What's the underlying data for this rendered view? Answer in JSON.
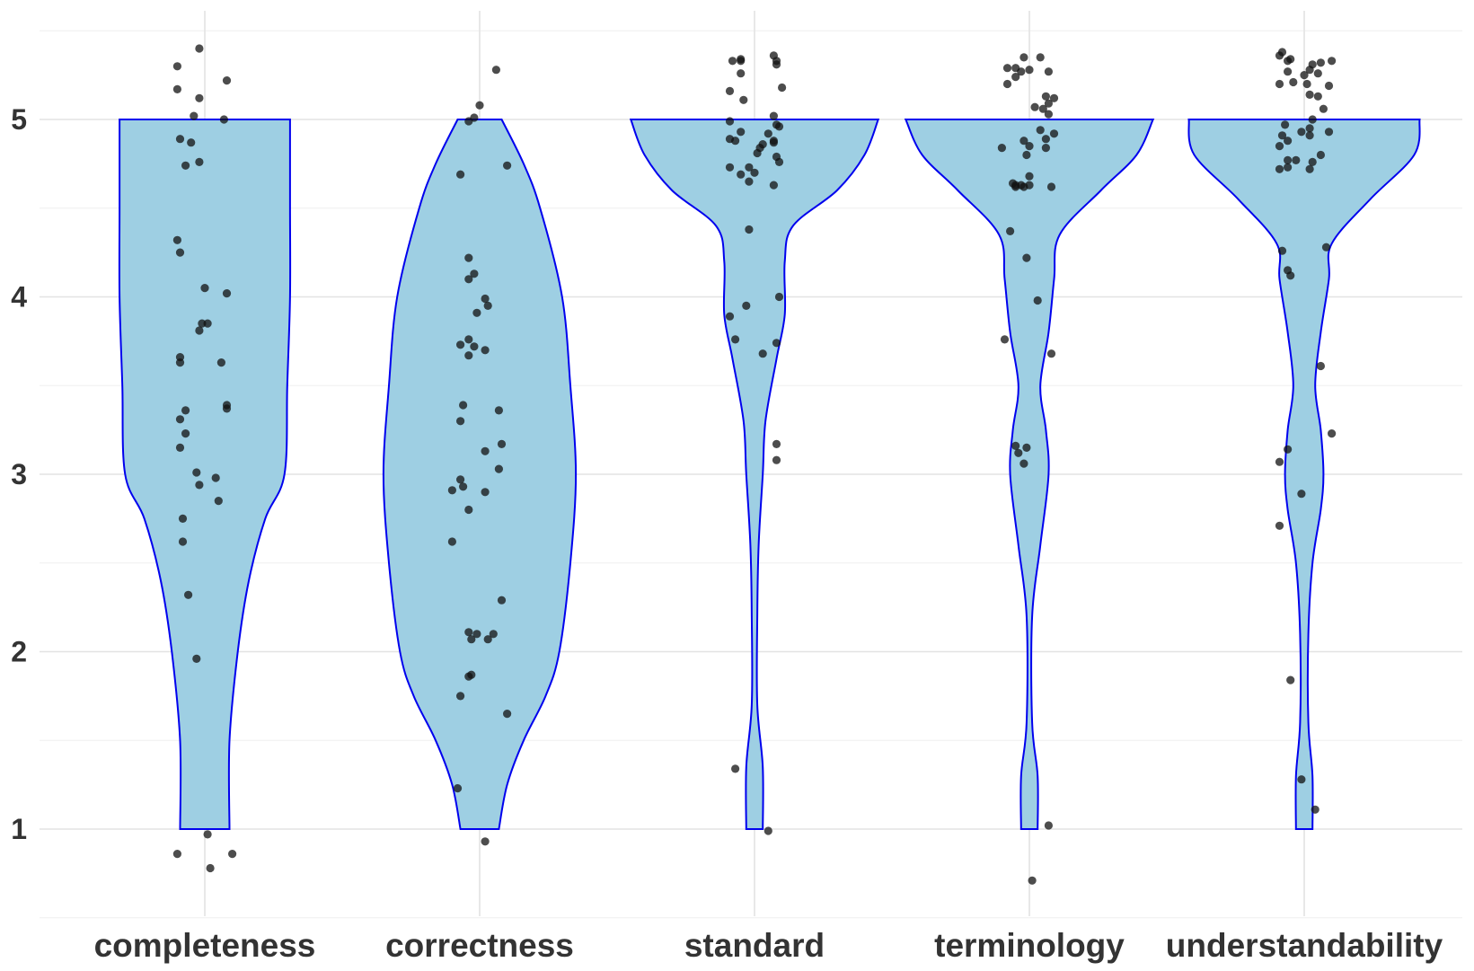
{
  "chart_data": {
    "type": "violin",
    "categories": [
      "completeness",
      "correctness",
      "standard",
      "terminology",
      "understandability"
    ],
    "y_ticks": [
      1,
      2,
      3,
      4,
      5
    ],
    "ylim": [
      0.5,
      5.5
    ],
    "grid": true,
    "colors": {
      "violin_fill": "#9ecfe3",
      "violin_stroke": "#0000ee",
      "point": "#111111"
    },
    "series": [
      {
        "category": "completeness",
        "density_profile": [
          [
            1.0,
            0.09
          ],
          [
            1.5,
            0.09
          ],
          [
            2.0,
            0.12
          ],
          [
            2.4,
            0.16
          ],
          [
            2.75,
            0.22
          ],
          [
            3.0,
            0.29
          ],
          [
            3.5,
            0.3
          ],
          [
            4.0,
            0.31
          ],
          [
            4.5,
            0.31
          ],
          [
            5.0,
            0.31
          ]
        ],
        "points": [
          [
            -0.1,
            5.3
          ],
          [
            -0.02,
            5.4
          ],
          [
            0.08,
            5.22
          ],
          [
            -0.1,
            5.17
          ],
          [
            -0.02,
            5.12
          ],
          [
            -0.04,
            5.02
          ],
          [
            0.07,
            5.0
          ],
          [
            -0.09,
            4.89
          ],
          [
            -0.05,
            4.87
          ],
          [
            -0.02,
            4.76
          ],
          [
            -0.07,
            4.74
          ],
          [
            -0.1,
            4.32
          ],
          [
            -0.09,
            4.25
          ],
          [
            0.0,
            4.05
          ],
          [
            0.08,
            4.02
          ],
          [
            -0.01,
            3.85
          ],
          [
            0.01,
            3.85
          ],
          [
            -0.02,
            3.81
          ],
          [
            -0.09,
            3.66
          ],
          [
            -0.09,
            3.63
          ],
          [
            0.06,
            3.63
          ],
          [
            0.08,
            3.39
          ],
          [
            0.08,
            3.37
          ],
          [
            -0.07,
            3.36
          ],
          [
            -0.09,
            3.31
          ],
          [
            -0.07,
            3.23
          ],
          [
            -0.09,
            3.15
          ],
          [
            -0.03,
            3.01
          ],
          [
            0.04,
            2.98
          ],
          [
            -0.02,
            2.94
          ],
          [
            0.05,
            2.85
          ],
          [
            -0.08,
            2.75
          ],
          [
            -0.08,
            2.62
          ],
          [
            -0.06,
            2.32
          ],
          [
            -0.03,
            1.96
          ],
          [
            0.01,
            0.97
          ],
          [
            -0.1,
            0.86
          ],
          [
            0.1,
            0.86
          ],
          [
            0.02,
            0.78
          ]
        ]
      },
      {
        "category": "correctness",
        "density_profile": [
          [
            1.0,
            0.07
          ],
          [
            1.25,
            0.1
          ],
          [
            1.5,
            0.16
          ],
          [
            1.75,
            0.24
          ],
          [
            2.0,
            0.29
          ],
          [
            2.5,
            0.33
          ],
          [
            3.0,
            0.35
          ],
          [
            3.5,
            0.33
          ],
          [
            4.0,
            0.3
          ],
          [
            4.5,
            0.22
          ],
          [
            4.75,
            0.16
          ],
          [
            5.0,
            0.08
          ]
        ],
        "points": [
          [
            0.06,
            5.28
          ],
          [
            0.0,
            5.08
          ],
          [
            -0.02,
            5.01
          ],
          [
            -0.04,
            4.99
          ],
          [
            0.1,
            4.74
          ],
          [
            -0.07,
            4.69
          ],
          [
            -0.04,
            4.22
          ],
          [
            -0.02,
            4.13
          ],
          [
            -0.04,
            4.1
          ],
          [
            0.02,
            3.99
          ],
          [
            0.03,
            3.95
          ],
          [
            -0.01,
            3.91
          ],
          [
            -0.04,
            3.76
          ],
          [
            -0.07,
            3.73
          ],
          [
            -0.02,
            3.72
          ],
          [
            0.02,
            3.7
          ],
          [
            -0.04,
            3.67
          ],
          [
            -0.06,
            3.39
          ],
          [
            0.07,
            3.36
          ],
          [
            -0.07,
            3.3
          ],
          [
            0.08,
            3.17
          ],
          [
            0.02,
            3.13
          ],
          [
            0.07,
            3.03
          ],
          [
            -0.07,
            2.97
          ],
          [
            -0.06,
            2.93
          ],
          [
            -0.1,
            2.91
          ],
          [
            0.02,
            2.9
          ],
          [
            -0.04,
            2.8
          ],
          [
            -0.1,
            2.62
          ],
          [
            0.08,
            2.29
          ],
          [
            -0.04,
            2.11
          ],
          [
            -0.01,
            2.1
          ],
          [
            0.05,
            2.1
          ],
          [
            -0.03,
            2.07
          ],
          [
            0.03,
            2.07
          ],
          [
            -0.03,
            1.87
          ],
          [
            -0.04,
            1.86
          ],
          [
            -0.07,
            1.75
          ],
          [
            0.1,
            1.65
          ],
          [
            -0.08,
            1.23
          ],
          [
            0.02,
            0.93
          ]
        ]
      },
      {
        "category": "standard",
        "density_profile": [
          [
            1.0,
            0.03
          ],
          [
            1.35,
            0.03
          ],
          [
            1.7,
            0.01
          ],
          [
            2.2,
            0.01
          ],
          [
            2.6,
            0.015
          ],
          [
            3.0,
            0.03
          ],
          [
            3.3,
            0.04
          ],
          [
            3.65,
            0.08
          ],
          [
            3.9,
            0.11
          ],
          [
            4.2,
            0.11
          ],
          [
            4.4,
            0.14
          ],
          [
            4.6,
            0.3
          ],
          [
            4.8,
            0.4
          ],
          [
            5.0,
            0.45
          ]
        ],
        "points": [
          [
            -0.05,
            5.34
          ],
          [
            -0.08,
            5.33
          ],
          [
            -0.05,
            5.33
          ],
          [
            0.07,
            5.36
          ],
          [
            0.08,
            5.33
          ],
          [
            0.08,
            5.31
          ],
          [
            -0.05,
            5.26
          ],
          [
            0.1,
            5.18
          ],
          [
            -0.09,
            5.16
          ],
          [
            -0.04,
            5.11
          ],
          [
            0.07,
            5.02
          ],
          [
            -0.09,
            4.99
          ],
          [
            0.08,
            4.97
          ],
          [
            0.09,
            4.96
          ],
          [
            -0.05,
            4.93
          ],
          [
            0.05,
            4.92
          ],
          [
            -0.09,
            4.89
          ],
          [
            -0.07,
            4.88
          ],
          [
            0.07,
            4.88
          ],
          [
            0.07,
            4.87
          ],
          [
            0.03,
            4.86
          ],
          [
            0.02,
            4.84
          ],
          [
            0.01,
            4.81
          ],
          [
            0.08,
            4.79
          ],
          [
            0.09,
            4.76
          ],
          [
            -0.09,
            4.73
          ],
          [
            -0.02,
            4.73
          ],
          [
            0.0,
            4.7
          ],
          [
            -0.05,
            4.69
          ],
          [
            -0.02,
            4.65
          ],
          [
            0.07,
            4.63
          ],
          [
            -0.02,
            4.38
          ],
          [
            0.09,
            4.0
          ],
          [
            -0.03,
            3.95
          ],
          [
            -0.09,
            3.89
          ],
          [
            -0.07,
            3.76
          ],
          [
            0.08,
            3.74
          ],
          [
            0.03,
            3.68
          ],
          [
            0.08,
            3.17
          ],
          [
            0.08,
            3.08
          ],
          [
            -0.07,
            1.34
          ],
          [
            0.05,
            0.99
          ]
        ]
      },
      {
        "category": "terminology",
        "density_profile": [
          [
            1.0,
            0.03
          ],
          [
            1.3,
            0.03
          ],
          [
            1.6,
            0.01
          ],
          [
            2.2,
            0.01
          ],
          [
            2.6,
            0.04
          ],
          [
            3.0,
            0.07
          ],
          [
            3.25,
            0.06
          ],
          [
            3.5,
            0.04
          ],
          [
            3.8,
            0.07
          ],
          [
            4.1,
            0.09
          ],
          [
            4.35,
            0.11
          ],
          [
            4.6,
            0.26
          ],
          [
            4.8,
            0.39
          ],
          [
            5.0,
            0.45
          ]
        ],
        "points": [
          [
            -0.02,
            5.35
          ],
          [
            0.04,
            5.35
          ],
          [
            -0.05,
            5.29
          ],
          [
            -0.08,
            5.29
          ],
          [
            0.0,
            5.28
          ],
          [
            0.07,
            5.27
          ],
          [
            -0.03,
            5.27
          ],
          [
            -0.05,
            5.24
          ],
          [
            -0.08,
            5.2
          ],
          [
            0.06,
            5.13
          ],
          [
            0.09,
            5.12
          ],
          [
            0.07,
            5.09
          ],
          [
            0.02,
            5.07
          ],
          [
            0.05,
            5.06
          ],
          [
            0.07,
            5.03
          ],
          [
            0.04,
            4.94
          ],
          [
            0.09,
            4.92
          ],
          [
            0.06,
            4.89
          ],
          [
            -0.02,
            4.88
          ],
          [
            0.0,
            4.85
          ],
          [
            -0.1,
            4.84
          ],
          [
            -0.01,
            4.8
          ],
          [
            0.06,
            4.84
          ],
          [
            0.0,
            4.68
          ],
          [
            -0.06,
            4.64
          ],
          [
            -0.03,
            4.63
          ],
          [
            -0.05,
            4.63
          ],
          [
            0.0,
            4.63
          ],
          [
            -0.05,
            4.62
          ],
          [
            -0.02,
            4.62
          ],
          [
            0.08,
            4.62
          ],
          [
            -0.07,
            4.37
          ],
          [
            -0.01,
            4.22
          ],
          [
            0.03,
            3.98
          ],
          [
            -0.09,
            3.76
          ],
          [
            0.08,
            3.68
          ],
          [
            -0.05,
            3.16
          ],
          [
            -0.04,
            3.12
          ],
          [
            -0.01,
            3.15
          ],
          [
            -0.02,
            3.06
          ],
          [
            0.07,
            1.02
          ],
          [
            0.01,
            0.71
          ]
        ]
      },
      {
        "category": "understandability",
        "density_profile": [
          [
            1.0,
            0.03
          ],
          [
            1.3,
            0.03
          ],
          [
            1.6,
            0.015
          ],
          [
            2.1,
            0.015
          ],
          [
            2.5,
            0.03
          ],
          [
            2.8,
            0.06
          ],
          [
            3.0,
            0.07
          ],
          [
            3.25,
            0.06
          ],
          [
            3.5,
            0.04
          ],
          [
            3.8,
            0.06
          ],
          [
            4.1,
            0.09
          ],
          [
            4.3,
            0.1
          ],
          [
            4.55,
            0.24
          ],
          [
            4.8,
            0.4
          ],
          [
            5.0,
            0.42
          ]
        ],
        "points": [
          [
            -0.08,
            5.38
          ],
          [
            -0.09,
            5.36
          ],
          [
            -0.06,
            5.33
          ],
          [
            -0.05,
            5.34
          ],
          [
            0.06,
            5.32
          ],
          [
            0.03,
            5.31
          ],
          [
            0.1,
            5.33
          ],
          [
            0.02,
            5.28
          ],
          [
            -0.06,
            5.27
          ],
          [
            0.0,
            5.25
          ],
          [
            0.05,
            5.26
          ],
          [
            -0.04,
            5.21
          ],
          [
            0.01,
            5.2
          ],
          [
            0.09,
            5.19
          ],
          [
            -0.09,
            5.2
          ],
          [
            0.02,
            5.14
          ],
          [
            0.05,
            5.13
          ],
          [
            0.07,
            5.06
          ],
          [
            0.03,
            5.0
          ],
          [
            -0.07,
            4.97
          ],
          [
            0.02,
            4.95
          ],
          [
            -0.01,
            4.93
          ],
          [
            0.09,
            4.93
          ],
          [
            0.02,
            4.91
          ],
          [
            -0.08,
            4.91
          ],
          [
            -0.06,
            4.88
          ],
          [
            -0.09,
            4.85
          ],
          [
            0.06,
            4.8
          ],
          [
            -0.03,
            4.77
          ],
          [
            -0.06,
            4.77
          ],
          [
            0.03,
            4.76
          ],
          [
            0.02,
            4.72
          ],
          [
            -0.06,
            4.73
          ],
          [
            -0.09,
            4.72
          ],
          [
            -0.08,
            4.26
          ],
          [
            0.08,
            4.28
          ],
          [
            -0.06,
            4.15
          ],
          [
            -0.05,
            4.12
          ],
          [
            0.06,
            3.61
          ],
          [
            0.1,
            3.23
          ],
          [
            -0.06,
            3.14
          ],
          [
            -0.09,
            3.07
          ],
          [
            -0.01,
            2.89
          ],
          [
            -0.09,
            2.71
          ],
          [
            -0.05,
            1.84
          ],
          [
            -0.01,
            1.28
          ],
          [
            0.04,
            1.11
          ]
        ]
      }
    ]
  }
}
